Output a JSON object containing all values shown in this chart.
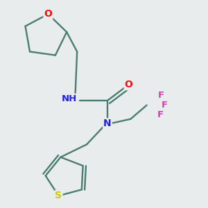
{
  "background_color": "#e8ecec",
  "bond_color": "#4a7c6f",
  "atom_colors": {
    "O": "#ee1111",
    "N": "#2222dd",
    "H": "#888888",
    "S": "#cccc00",
    "F": "#cc44aa",
    "C": "#4a7c6f"
  },
  "figsize": [
    3.0,
    3.0
  ],
  "dpi": 100
}
